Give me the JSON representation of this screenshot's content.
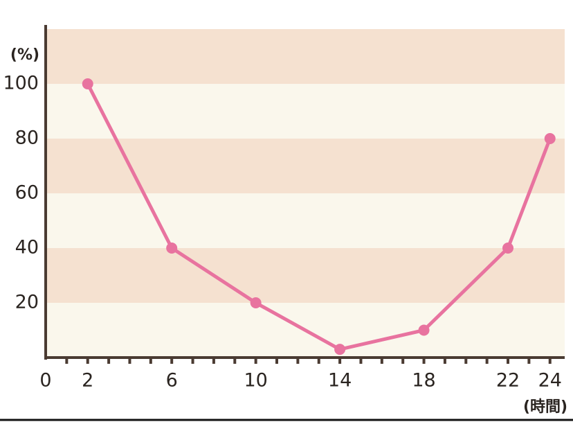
{
  "chart_data": {
    "type": "line",
    "y_label": "(%)",
    "x_label": "(時間)",
    "x": [
      2,
      6,
      10,
      14,
      18,
      22,
      24
    ],
    "series": [
      {
        "color": "#e8739f",
        "values": [
          100,
          40,
          20,
          3,
          10,
          40,
          80
        ]
      }
    ],
    "xlim": [
      0,
      24.7
    ],
    "ylim": [
      0,
      120
    ],
    "xticks": [
      0,
      2,
      6,
      10,
      14,
      18,
      22,
      24
    ],
    "minor_xticks": [
      1,
      2,
      3,
      4,
      5,
      6,
      7,
      8,
      9,
      10,
      11,
      12,
      13,
      14,
      15,
      16,
      17,
      18,
      19,
      20,
      21,
      22,
      23,
      24
    ],
    "yticks": [
      20,
      40,
      60,
      80,
      100
    ],
    "band_colors": [
      "#faf7ec",
      "#f5e1d0"
    ],
    "axis_color": "#4a3b32"
  }
}
